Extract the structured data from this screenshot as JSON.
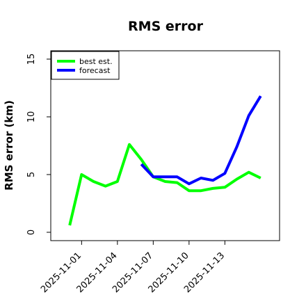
{
  "chart_data": {
    "type": "line",
    "title": "RMS error",
    "xlabel": "",
    "ylabel": "RMS error (km)",
    "ylim": [
      0,
      15
    ],
    "yticks": [
      0,
      5,
      10,
      15
    ],
    "xlim": [
      "2025-10-30",
      "2025-11-17"
    ],
    "xticks": [
      "2025-11-01",
      "2025-11-04",
      "2025-11-07",
      "2025-11-10",
      "2025-11-13"
    ],
    "grid": false,
    "legend": "top-left",
    "series": [
      {
        "name": "best est.",
        "color": "#00ff00",
        "x": [
          "2025-10-31",
          "2025-11-01",
          "2025-11-02",
          "2025-11-03",
          "2025-11-04",
          "2025-11-05",
          "2025-11-06",
          "2025-11-07",
          "2025-11-08",
          "2025-11-09",
          "2025-11-10",
          "2025-11-11",
          "2025-11-12",
          "2025-11-13",
          "2025-11-14",
          "2025-11-15",
          "2025-11-16"
        ],
        "values": [
          0.6,
          5.0,
          4.4,
          4.0,
          4.4,
          7.6,
          6.3,
          4.8,
          4.4,
          4.3,
          3.6,
          3.6,
          3.8,
          3.9,
          4.6,
          5.2,
          4.7
        ]
      },
      {
        "name": "forecast",
        "color": "#0000ff",
        "x": [
          "2025-11-06",
          "2025-11-07",
          "2025-11-08",
          "2025-11-09",
          "2025-11-10",
          "2025-11-11",
          "2025-11-12",
          "2025-11-13",
          "2025-11-14",
          "2025-11-15",
          "2025-11-16"
        ],
        "values": [
          5.9,
          4.8,
          4.8,
          4.8,
          4.2,
          4.7,
          4.5,
          5.1,
          7.4,
          10.1,
          11.8
        ]
      }
    ]
  }
}
